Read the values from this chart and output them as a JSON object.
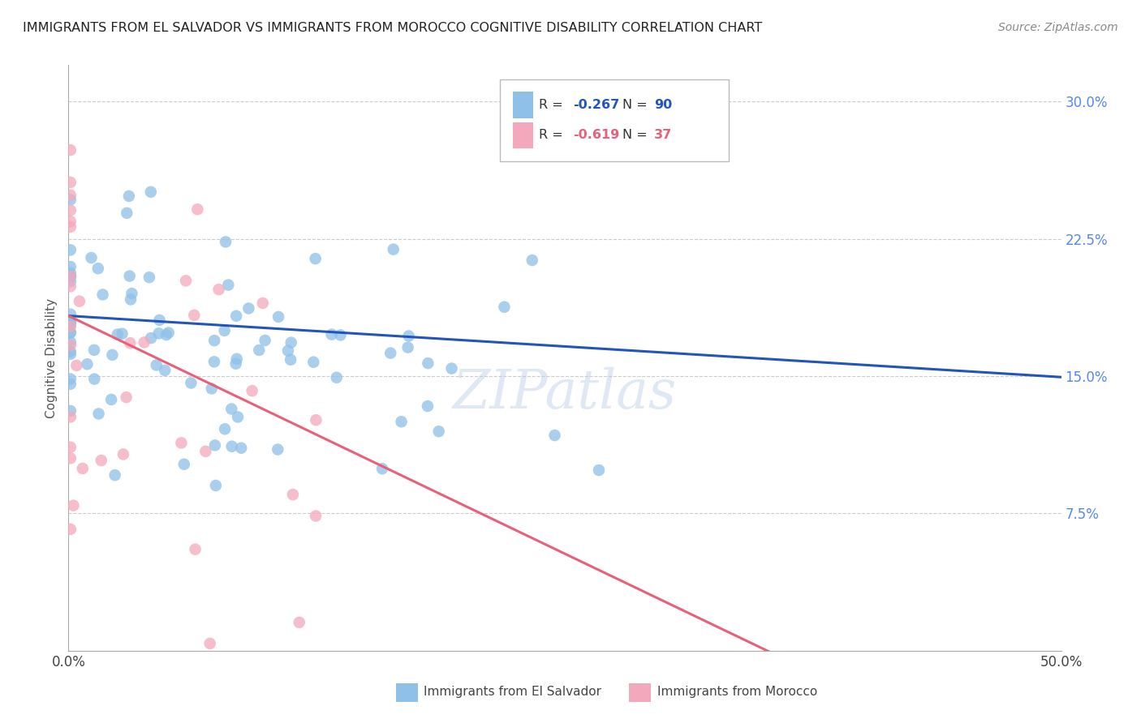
{
  "title": "IMMIGRANTS FROM EL SALVADOR VS IMMIGRANTS FROM MOROCCO COGNITIVE DISABILITY CORRELATION CHART",
  "source": "Source: ZipAtlas.com",
  "ylabel": "Cognitive Disability",
  "yticks": [
    "30.0%",
    "22.5%",
    "15.0%",
    "7.5%"
  ],
  "ytick_vals": [
    0.3,
    0.225,
    0.15,
    0.075
  ],
  "xtick_vals": [
    0.0,
    0.05,
    0.1,
    0.15,
    0.2,
    0.25,
    0.3,
    0.35,
    0.4,
    0.45,
    0.5
  ],
  "xlim": [
    0.0,
    0.5
  ],
  "ylim": [
    0.0,
    0.32
  ],
  "watermark": "ZIPatlas",
  "blue_color": "#8ec0e8",
  "pink_color": "#f4a8bb",
  "blue_line_color": "#2255bb",
  "pink_line_color": "#e8607a",
  "blue_R": -0.267,
  "blue_N": 90,
  "pink_R": -0.619,
  "pink_N": 37,
  "blue_intercept": 0.183,
  "blue_slope": -0.067,
  "pink_intercept": 0.183,
  "pink_slope": -0.52
}
